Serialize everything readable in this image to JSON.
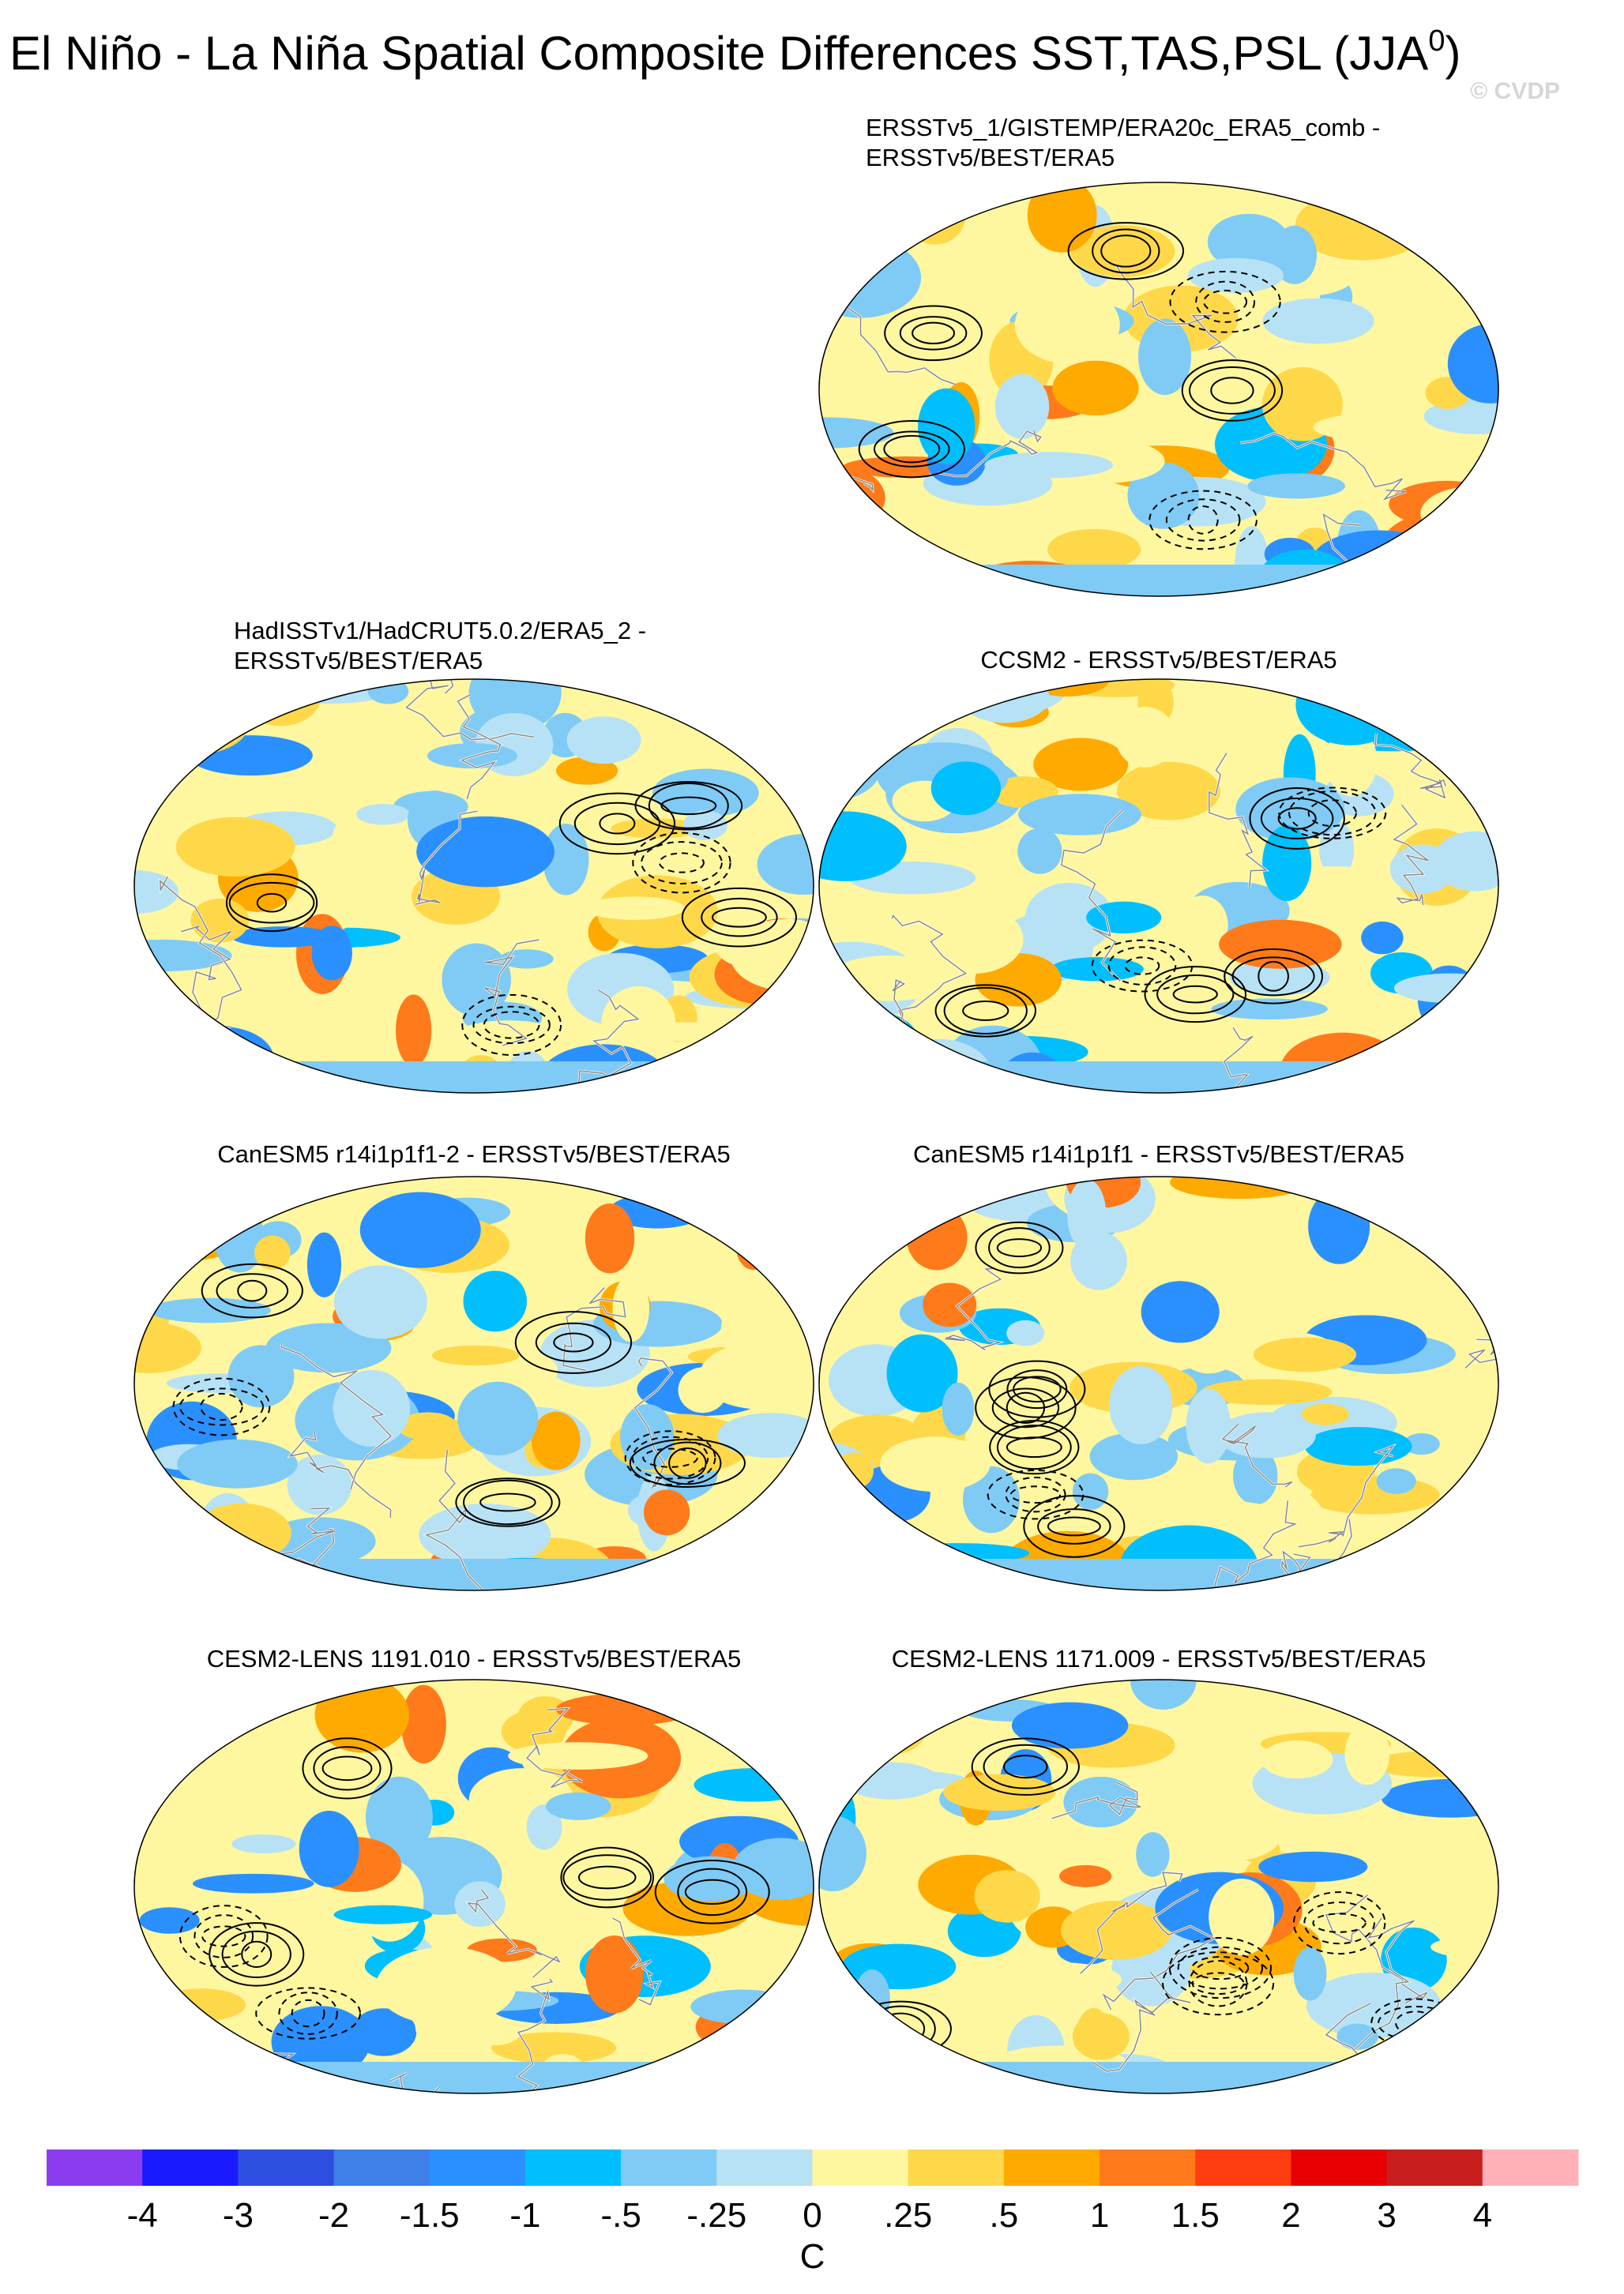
{
  "header": {
    "title": "El Niño - La Niña Spatial Composite Differences SST,TAS,PSL (JJA",
    "title_superscript": "0",
    "title_end": ")",
    "watermark": "© CVDP"
  },
  "panels": [
    {
      "title_lines": [
        "ERSSTv5_1/GISTEMP/ERA20c_ERA5_comb -",
        "ERSSTv5/BEST/ERA5"
      ]
    },
    {
      "title_lines": [
        "HadISSTv1/HadCRUT5.0.2/ERA5_2 -",
        "ERSSTv5/BEST/ERA5"
      ]
    },
    {
      "title_lines": [
        "CCSM2 - ERSSTv5/BEST/ERA5"
      ]
    },
    {
      "title_lines": [
        "CanESM5 r14i1p1f1-2 - ERSSTv5/BEST/ERA5"
      ]
    },
    {
      "title_lines": [
        "CanESM5 r14i1p1f1 - ERSSTv5/BEST/ERA5"
      ]
    },
    {
      "title_lines": [
        "CESM2-LENS 1191.010 - ERSSTv5/BEST/ERA5"
      ]
    },
    {
      "title_lines": [
        "CESM2-LENS 1171.009 - ERSSTv5/BEST/ERA5"
      ]
    }
  ],
  "colorbar": {
    "colors": [
      "#8c3cf0",
      "#1a1aff",
      "#2d4fe0",
      "#3f7fe8",
      "#2a90ff",
      "#00bfff",
      "#7fcbf5",
      "#b7e2f5",
      "#fff7a0",
      "#ffd84a",
      "#ffaa00",
      "#ff7a1a",
      "#ff3d10",
      "#e60000",
      "#c81e1e",
      "#ffb0b8"
    ],
    "ticks": [
      -4,
      -3,
      -2,
      -1.5,
      -1,
      {
        "value": -0.5,
        "label": "-.5"
      },
      {
        "value": -0.25,
        "label": "-.25"
      },
      0,
      {
        "value": 0.25,
        "label": ".25"
      },
      {
        "value": 0.5,
        "label": ".5"
      },
      1,
      1.5,
      2,
      3,
      4
    ],
    "unit": "C"
  }
}
